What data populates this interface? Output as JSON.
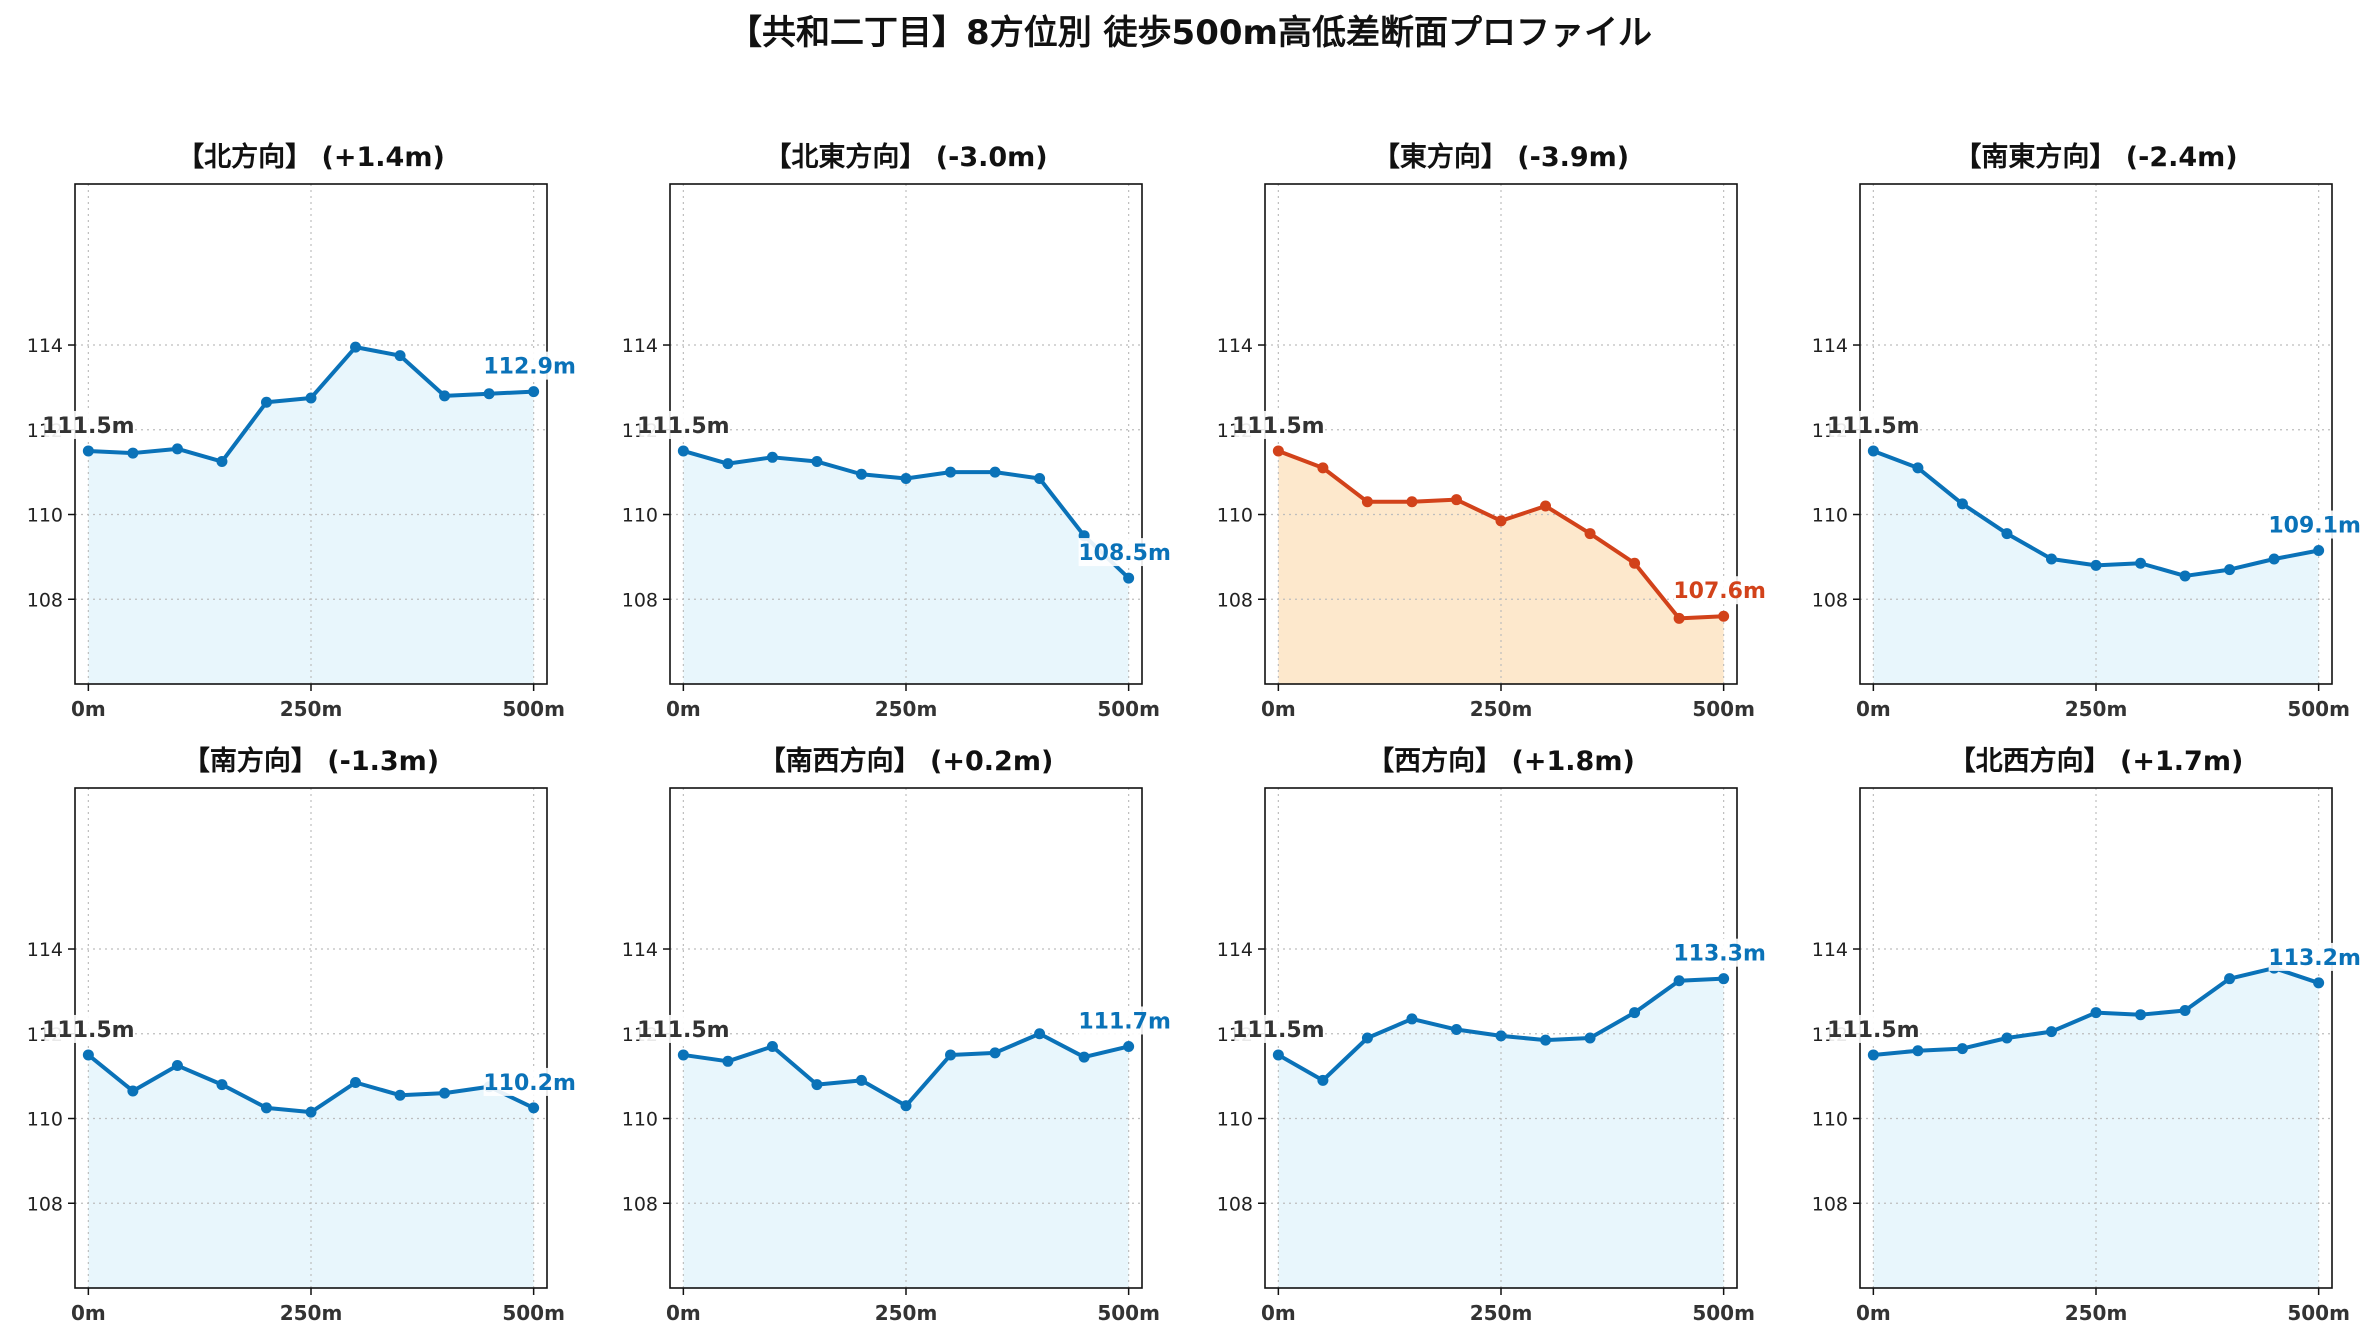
{
  "figure": {
    "title": "【共和二丁目】8方位別 徒歩500m高低差断面プロファイル"
  },
  "colors": {
    "normal_line": "#1f77b4",
    "normal_line_dark": "#0a72b8",
    "normal_fill": "#e8f6fc",
    "highlight_line": "#d2421a",
    "highlight_fill": "#fde8cc"
  },
  "chart_data": [
    {
      "type": "line",
      "title": "【北方向】 (+1.4m)",
      "x": [
        0,
        50,
        100,
        150,
        200,
        250,
        300,
        350,
        400,
        450,
        500
      ],
      "values": [
        111.5,
        111.45,
        111.55,
        111.25,
        112.65,
        112.75,
        113.95,
        113.75,
        112.8,
        112.85,
        112.9
      ],
      "start_label": "111.5m",
      "end_label": "112.9m",
      "highlight": false,
      "xticks": [
        "0m",
        "250m",
        "500m"
      ],
      "yticks": [
        108,
        110,
        114
      ],
      "partial_ytick": "112",
      "ylim": [
        106.0,
        117.8
      ],
      "xlim": [
        -15,
        515
      ],
      "grid": true
    },
    {
      "type": "line",
      "title": "【北東方向】 (-3.0m)",
      "x": [
        0,
        50,
        100,
        150,
        200,
        250,
        300,
        350,
        400,
        450,
        500
      ],
      "values": [
        111.5,
        111.2,
        111.35,
        111.25,
        110.95,
        110.85,
        111.0,
        111.0,
        110.85,
        109.5,
        108.5
      ],
      "start_label": "111.5m",
      "end_label": "108.5m",
      "highlight": false,
      "xticks": [
        "0m",
        "250m",
        "500m"
      ],
      "yticks": [
        108,
        110,
        114
      ],
      "partial_ytick": "112",
      "ylim": [
        106.0,
        117.8
      ],
      "xlim": [
        -15,
        515
      ],
      "grid": true
    },
    {
      "type": "line",
      "title": "【東方向】 (-3.9m)",
      "x": [
        0,
        50,
        100,
        150,
        200,
        250,
        300,
        350,
        400,
        450,
        500
      ],
      "values": [
        111.5,
        111.1,
        110.3,
        110.3,
        110.35,
        109.85,
        110.2,
        109.55,
        108.85,
        107.55,
        107.6
      ],
      "start_label": "111.5m",
      "end_label": "107.6m",
      "highlight": true,
      "xticks": [
        "0m",
        "250m",
        "500m"
      ],
      "yticks": [
        108,
        110,
        114
      ],
      "partial_ytick": "112",
      "ylim": [
        106.0,
        117.8
      ],
      "xlim": [
        -15,
        515
      ],
      "grid": true
    },
    {
      "type": "line",
      "title": "【南東方向】 (-2.4m)",
      "x": [
        0,
        50,
        100,
        150,
        200,
        250,
        300,
        350,
        400,
        450,
        500
      ],
      "values": [
        111.5,
        111.1,
        110.25,
        109.55,
        108.95,
        108.8,
        108.85,
        108.55,
        108.7,
        108.95,
        109.15
      ],
      "start_label": "111.5m",
      "end_label": "109.1m",
      "highlight": false,
      "xticks": [
        "0m",
        "250m",
        "500m"
      ],
      "yticks": [
        108,
        110,
        114
      ],
      "partial_ytick": "112",
      "ylim": [
        106.0,
        117.8
      ],
      "xlim": [
        -15,
        515
      ],
      "grid": true
    },
    {
      "type": "line",
      "title": "【南方向】 (-1.3m)",
      "x": [
        0,
        50,
        100,
        150,
        200,
        250,
        300,
        350,
        400,
        450,
        500
      ],
      "values": [
        111.5,
        110.65,
        111.25,
        110.8,
        110.25,
        110.15,
        110.85,
        110.55,
        110.6,
        110.75,
        110.25
      ],
      "start_label": "111.5m",
      "end_label": "110.2m",
      "highlight": false,
      "xticks": [
        "0m",
        "250m",
        "500m"
      ],
      "yticks": [
        108,
        110,
        114
      ],
      "partial_ytick": "112",
      "ylim": [
        106.0,
        117.8
      ],
      "xlim": [
        -15,
        515
      ],
      "grid": true
    },
    {
      "type": "line",
      "title": "【南西方向】 (+0.2m)",
      "x": [
        0,
        50,
        100,
        150,
        200,
        250,
        300,
        350,
        400,
        450,
        500
      ],
      "values": [
        111.5,
        111.35,
        111.7,
        110.8,
        110.9,
        110.3,
        111.5,
        111.55,
        112.0,
        111.45,
        111.7
      ],
      "start_label": "111.5m",
      "end_label": "111.7m",
      "highlight": false,
      "xticks": [
        "0m",
        "250m",
        "500m"
      ],
      "yticks": [
        108,
        110,
        114
      ],
      "partial_ytick": "112",
      "ylim": [
        106.0,
        117.8
      ],
      "xlim": [
        -15,
        515
      ],
      "grid": true
    },
    {
      "type": "line",
      "title": "【西方向】 (+1.8m)",
      "x": [
        0,
        50,
        100,
        150,
        200,
        250,
        300,
        350,
        400,
        450,
        500
      ],
      "values": [
        111.5,
        110.9,
        111.9,
        112.35,
        112.1,
        111.95,
        111.85,
        111.9,
        112.5,
        113.25,
        113.3
      ],
      "start_label": "111.5m",
      "end_label": "113.3m",
      "highlight": false,
      "xticks": [
        "0m",
        "250m",
        "500m"
      ],
      "yticks": [
        108,
        110,
        114
      ],
      "partial_ytick": "112",
      "ylim": [
        106.0,
        117.8
      ],
      "xlim": [
        -15,
        515
      ],
      "grid": true
    },
    {
      "type": "line",
      "title": "【北西方向】 (+1.7m)",
      "x": [
        0,
        50,
        100,
        150,
        200,
        250,
        300,
        350,
        400,
        450,
        500
      ],
      "values": [
        111.5,
        111.6,
        111.65,
        111.9,
        112.05,
        112.5,
        112.45,
        112.55,
        113.3,
        113.55,
        113.2
      ],
      "start_label": "111.5m",
      "end_label": "113.2m",
      "highlight": false,
      "xticks": [
        "0m",
        "250m",
        "500m"
      ],
      "yticks": [
        108,
        110,
        114
      ],
      "partial_ytick": "112",
      "ylim": [
        106.0,
        117.8
      ],
      "xlim": [
        -15,
        515
      ],
      "grid": true
    }
  ]
}
